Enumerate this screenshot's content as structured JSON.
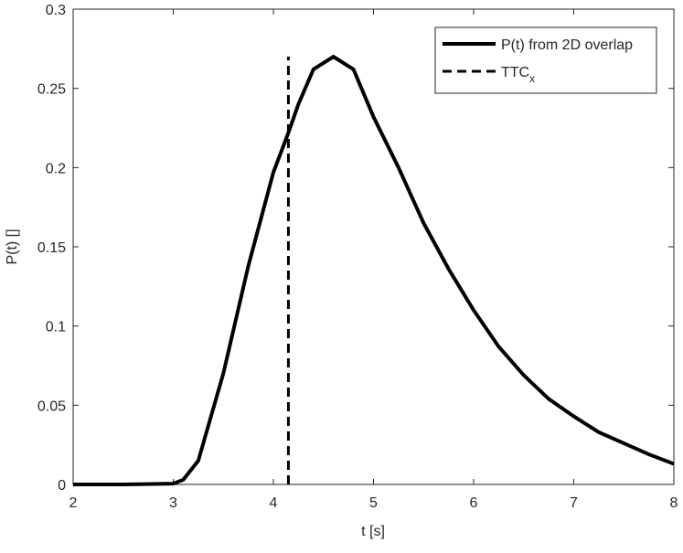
{
  "chart_data": {
    "type": "line",
    "xlabel": "t [s]",
    "ylabel": "P(t) []",
    "xlim": [
      2,
      8
    ],
    "ylim": [
      0,
      0.3
    ],
    "xticks": [
      2,
      3,
      4,
      5,
      6,
      7,
      8
    ],
    "yticks": [
      0,
      0.05,
      0.1,
      0.15,
      0.2,
      0.25,
      0.3
    ],
    "grid": false,
    "legend": "upper-right",
    "series": [
      {
        "name": "P(t) from 2D overlap",
        "color": "#000000",
        "dash": false,
        "x": [
          2,
          2.5,
          3,
          3.1,
          3.25,
          3.5,
          3.75,
          4,
          4.15,
          4.25,
          4.4,
          4.6,
          4.8,
          5,
          5.25,
          5.5,
          5.75,
          6,
          6.25,
          6.5,
          6.75,
          7,
          7.25,
          7.5,
          7.75,
          8
        ],
        "values": [
          0,
          0,
          0.0005,
          0.003,
          0.015,
          0.07,
          0.138,
          0.197,
          0.222,
          0.24,
          0.262,
          0.27,
          0.262,
          0.232,
          0.2,
          0.165,
          0.136,
          0.11,
          0.087,
          0.069,
          0.054,
          0.043,
          0.033,
          0.026,
          0.019,
          0.013
        ]
      },
      {
        "name": "TTC",
        "name_subscript": "x",
        "color": "#000000",
        "dash": true,
        "x": [
          4.15,
          4.15
        ],
        "values": [
          0,
          0.27
        ]
      }
    ]
  }
}
